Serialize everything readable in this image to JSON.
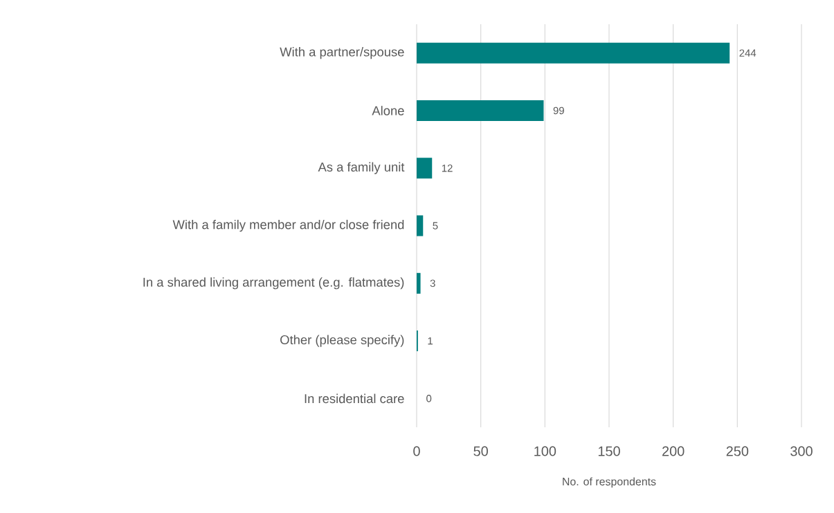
{
  "chart_data": {
    "type": "bar",
    "orientation": "horizontal",
    "xlabel": "No. of respondents",
    "categories": [
      "With a partner/spouse",
      "Alone",
      "As a family unit",
      "With a family member and/or close friend",
      "In a shared living arrangement (e.g. flatmates)",
      "Other (please specify)",
      "In residential care"
    ],
    "values": [
      244,
      99,
      12,
      5,
      3,
      1,
      0
    ],
    "color": "#008080",
    "xlim": [
      0,
      300
    ],
    "xticks": [
      0,
      50,
      100,
      150,
      200,
      250,
      300
    ],
    "grid": "x",
    "data_labels": true
  }
}
